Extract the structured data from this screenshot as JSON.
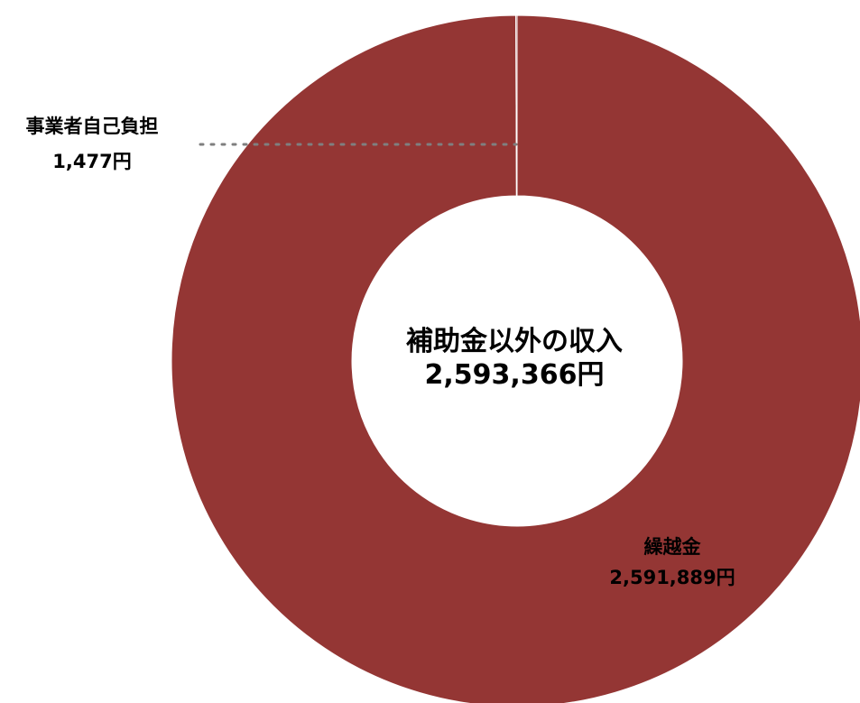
{
  "chart_data": {
    "type": "pie",
    "center_label": {
      "title": "補助金以外の収入",
      "value": "2,593,366円"
    },
    "slices": [
      {
        "name": "繰越金",
        "value": 2591889,
        "value_label": "2,591,889円",
        "color": "#943634"
      },
      {
        "name": "事業者自己負担",
        "value": 1477,
        "value_label": "1,477円",
        "color": "#943634"
      }
    ],
    "total": 2593366,
    "legend": "none"
  }
}
